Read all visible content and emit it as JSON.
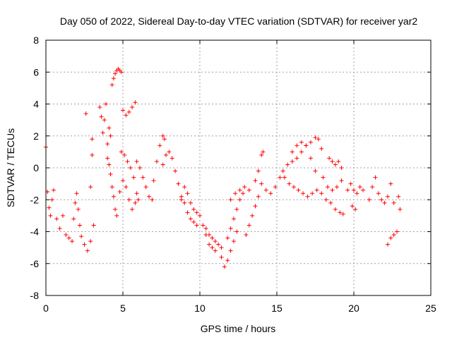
{
  "chart_data": {
    "type": "scatter",
    "title": "Day 050 of 2022, Sidereal Day-to-day VTEC variation (SDTVAR) for receiver yar2",
    "xlabel": "GPS time / hours",
    "ylabel": "SDTVAR / TECUs",
    "xlim": [
      0,
      25
    ],
    "ylim": [
      -8,
      8
    ],
    "xticks": [
      "0",
      "5",
      "10",
      "15",
      "20",
      "25"
    ],
    "yticks": [
      "-8",
      "-6",
      "-4",
      "-2",
      "0",
      "2",
      "4",
      "6",
      "8"
    ],
    "grid": true,
    "marker": "+",
    "marker_color": "#ff0000",
    "series": [
      {
        "name": "SDTVAR",
        "points": [
          [
            0.0,
            1.3
          ],
          [
            0.1,
            -1.5
          ],
          [
            0.2,
            -2.5
          ],
          [
            0.3,
            -3.0
          ],
          [
            0.4,
            -2.0
          ],
          [
            0.5,
            -1.4
          ],
          [
            0.7,
            -3.2
          ],
          [
            0.9,
            -3.8
          ],
          [
            1.1,
            -3.0
          ],
          [
            1.3,
            -4.2
          ],
          [
            1.5,
            -4.4
          ],
          [
            1.7,
            -4.6
          ],
          [
            1.8,
            -3.2
          ],
          [
            1.9,
            -2.2
          ],
          [
            2.0,
            -1.6
          ],
          [
            2.1,
            -2.6
          ],
          [
            2.2,
            -3.6
          ],
          [
            2.3,
            -4.3
          ],
          [
            2.5,
            -4.8
          ],
          [
            2.6,
            3.4
          ],
          [
            2.7,
            -5.2
          ],
          [
            2.9,
            -4.6
          ],
          [
            2.9,
            -1.2
          ],
          [
            3.0,
            0.8
          ],
          [
            3.0,
            1.8
          ],
          [
            3.1,
            -3.6
          ],
          [
            3.5,
            3.8
          ],
          [
            3.6,
            3.2
          ],
          [
            3.7,
            2.2
          ],
          [
            3.8,
            3.0
          ],
          [
            3.9,
            4.0
          ],
          [
            4.0,
            1.5
          ],
          [
            4.1,
            2.5
          ],
          [
            4.2,
            2.0
          ],
          [
            4.3,
            5.2
          ],
          [
            4.4,
            5.6
          ],
          [
            4.5,
            5.9
          ],
          [
            4.6,
            6.1
          ],
          [
            4.7,
            6.2
          ],
          [
            4.8,
            6.1
          ],
          [
            4.9,
            6.0
          ],
          [
            5.0,
            3.6
          ],
          [
            5.2,
            3.3
          ],
          [
            5.4,
            3.5
          ],
          [
            5.6,
            3.8
          ],
          [
            5.8,
            4.1
          ],
          [
            4.0,
            0.6
          ],
          [
            4.1,
            0.2
          ],
          [
            4.2,
            -0.4
          ],
          [
            4.3,
            -1.2
          ],
          [
            4.4,
            -1.8
          ],
          [
            4.5,
            -2.6
          ],
          [
            4.6,
            -3.0
          ],
          [
            4.8,
            -1.5
          ],
          [
            5.0,
            -0.8
          ],
          [
            5.2,
            -1.2
          ],
          [
            5.4,
            -2.0
          ],
          [
            5.6,
            -2.6
          ],
          [
            5.8,
            -2.2
          ],
          [
            4.9,
            1.0
          ],
          [
            5.1,
            0.8
          ],
          [
            5.3,
            0.4
          ],
          [
            5.5,
            0.0
          ],
          [
            5.7,
            -0.6
          ],
          [
            5.9,
            -1.6
          ],
          [
            6.0,
            -2.0
          ],
          [
            5.9,
            0.4
          ],
          [
            6.1,
            0.0
          ],
          [
            6.3,
            -0.6
          ],
          [
            6.5,
            -1.2
          ],
          [
            6.7,
            -1.8
          ],
          [
            6.9,
            -2.0
          ],
          [
            7.0,
            -0.8
          ],
          [
            7.2,
            0.4
          ],
          [
            7.4,
            1.4
          ],
          [
            7.6,
            2.0
          ],
          [
            7.7,
            1.8
          ],
          [
            7.6,
            0.2
          ],
          [
            7.8,
            0.8
          ],
          [
            8.0,
            1.0
          ],
          [
            8.2,
            0.6
          ],
          [
            8.4,
            -0.2
          ],
          [
            8.6,
            -1.0
          ],
          [
            8.8,
            -1.8
          ],
          [
            8.8,
            -2.0
          ],
          [
            9.0,
            -2.2
          ],
          [
            9.2,
            -2.8
          ],
          [
            9.4,
            -3.2
          ],
          [
            9.6,
            -3.4
          ],
          [
            9.8,
            -3.6
          ],
          [
            9.0,
            -1.2
          ],
          [
            9.2,
            -1.6
          ],
          [
            9.4,
            -2.2
          ],
          [
            9.6,
            -2.6
          ],
          [
            9.8,
            -2.8
          ],
          [
            10.0,
            -3.0
          ],
          [
            10.2,
            -3.6
          ],
          [
            10.4,
            -4.2
          ],
          [
            10.6,
            -4.8
          ],
          [
            10.8,
            -5.0
          ],
          [
            11.0,
            -5.2
          ],
          [
            10.4,
            -3.8
          ],
          [
            10.6,
            -4.2
          ],
          [
            10.8,
            -4.4
          ],
          [
            11.0,
            -4.6
          ],
          [
            11.2,
            -4.8
          ],
          [
            11.4,
            -5.0
          ],
          [
            11.4,
            -5.6
          ],
          [
            11.6,
            -6.2
          ],
          [
            11.8,
            -5.8
          ],
          [
            12.0,
            -5.2
          ],
          [
            12.2,
            -4.6
          ],
          [
            12.4,
            -4.0
          ],
          [
            11.8,
            -4.4
          ],
          [
            12.0,
            -3.8
          ],
          [
            12.2,
            -3.2
          ],
          [
            12.4,
            -2.6
          ],
          [
            12.6,
            -2.0
          ],
          [
            12.8,
            -1.6
          ],
          [
            12.0,
            -2.0
          ],
          [
            12.3,
            -1.6
          ],
          [
            12.6,
            -1.4
          ],
          [
            12.9,
            -1.2
          ],
          [
            13.2,
            -1.4
          ],
          [
            13.0,
            -4.2
          ],
          [
            13.2,
            -3.6
          ],
          [
            13.4,
            -3.0
          ],
          [
            13.6,
            -2.4
          ],
          [
            13.8,
            -1.8
          ],
          [
            13.6,
            -0.8
          ],
          [
            13.8,
            -0.2
          ],
          [
            14.0,
            0.8
          ],
          [
            14.1,
            1.0
          ],
          [
            14.0,
            -1.0
          ],
          [
            14.3,
            -1.4
          ],
          [
            14.6,
            -1.6
          ],
          [
            14.9,
            -1.2
          ],
          [
            15.2,
            -0.6
          ],
          [
            15.4,
            -0.2
          ],
          [
            15.7,
            0.2
          ],
          [
            16.0,
            0.4
          ],
          [
            16.3,
            0.6
          ],
          [
            16.6,
            1.0
          ],
          [
            16.9,
            1.4
          ],
          [
            17.2,
            1.6
          ],
          [
            17.5,
            1.9
          ],
          [
            17.7,
            1.8
          ],
          [
            17.9,
            1.2
          ],
          [
            16.0,
            1.0
          ],
          [
            16.3,
            1.4
          ],
          [
            16.6,
            1.6
          ],
          [
            16.9,
            1.4
          ],
          [
            17.2,
            0.6
          ],
          [
            17.5,
            -0.2
          ],
          [
            15.5,
            -0.6
          ],
          [
            15.8,
            -1.0
          ],
          [
            16.1,
            -1.2
          ],
          [
            16.4,
            -1.4
          ],
          [
            16.7,
            -1.6
          ],
          [
            17.0,
            -1.8
          ],
          [
            17.3,
            -1.6
          ],
          [
            17.6,
            -1.4
          ],
          [
            17.9,
            -1.6
          ],
          [
            18.2,
            -2.0
          ],
          [
            18.5,
            -2.2
          ],
          [
            18.8,
            -2.6
          ],
          [
            19.1,
            -2.8
          ],
          [
            19.3,
            -2.9
          ],
          [
            18.4,
            0.6
          ],
          [
            18.6,
            0.4
          ],
          [
            18.8,
            0.2
          ],
          [
            19.0,
            0.4
          ],
          [
            19.2,
            0.0
          ],
          [
            18.0,
            -0.6
          ],
          [
            18.3,
            -1.2
          ],
          [
            18.6,
            -1.4
          ],
          [
            18.9,
            -1.2
          ],
          [
            19.2,
            -0.8
          ],
          [
            19.6,
            -1.4
          ],
          [
            19.8,
            -1.0
          ],
          [
            20.0,
            -1.4
          ],
          [
            20.2,
            -1.6
          ],
          [
            20.4,
            -1.2
          ],
          [
            20.6,
            -1.4
          ],
          [
            19.9,
            -2.4
          ],
          [
            20.1,
            -2.6
          ],
          [
            21.0,
            -2.0
          ],
          [
            21.2,
            -1.2
          ],
          [
            21.4,
            -0.6
          ],
          [
            21.6,
            -1.6
          ],
          [
            21.8,
            -2.0
          ],
          [
            22.0,
            -2.2
          ],
          [
            22.2,
            -1.8
          ],
          [
            22.4,
            -1.0
          ],
          [
            22.6,
            -2.2
          ],
          [
            22.2,
            -4.8
          ],
          [
            22.4,
            -4.4
          ],
          [
            22.6,
            -4.2
          ],
          [
            22.8,
            -4.0
          ],
          [
            22.9,
            -1.8
          ],
          [
            23.0,
            -2.6
          ]
        ]
      }
    ]
  }
}
